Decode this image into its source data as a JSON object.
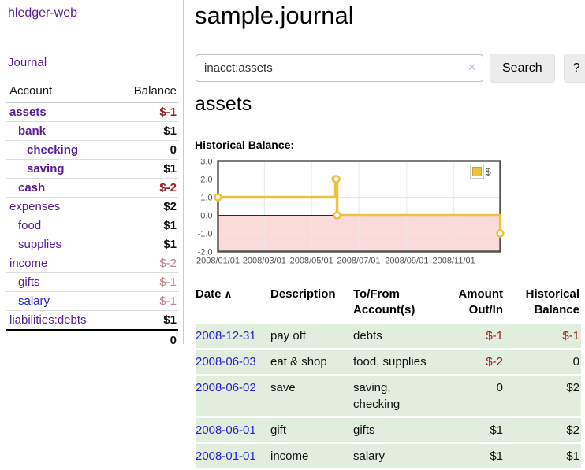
{
  "sidebar": {
    "brand": "hledger-web",
    "journal_link": "Journal",
    "account_table": {
      "headers": {
        "account": "Account",
        "balance": "Balance"
      },
      "rows": [
        {
          "account": "assets",
          "indent": 0,
          "emph": true,
          "blue": false,
          "balance": "$-1",
          "negative": true,
          "muted": false
        },
        {
          "account": "bank",
          "indent": 1,
          "emph": true,
          "blue": false,
          "balance": "$1",
          "negative": false,
          "muted": false
        },
        {
          "account": "checking",
          "indent": 2,
          "emph": true,
          "blue": false,
          "balance": "0",
          "negative": false,
          "muted": false
        },
        {
          "account": "saving",
          "indent": 2,
          "emph": true,
          "blue": false,
          "balance": "$1",
          "negative": false,
          "muted": false
        },
        {
          "account": "cash",
          "indent": 1,
          "emph": true,
          "blue": false,
          "balance": "$-2",
          "negative": true,
          "muted": false
        },
        {
          "account": "expenses",
          "indent": 0,
          "emph": false,
          "blue": false,
          "balance": "$2",
          "negative": false,
          "muted": false
        },
        {
          "account": "food",
          "indent": 1,
          "emph": false,
          "blue": false,
          "balance": "$1",
          "negative": false,
          "muted": false
        },
        {
          "account": "supplies",
          "indent": 1,
          "emph": false,
          "blue": false,
          "balance": "$1",
          "negative": false,
          "muted": false
        },
        {
          "account": "income",
          "indent": 0,
          "emph": false,
          "blue": false,
          "balance": "$-2",
          "negative": true,
          "muted": true
        },
        {
          "account": "gifts",
          "indent": 1,
          "emph": false,
          "blue": false,
          "balance": "$-1",
          "negative": true,
          "muted": true
        },
        {
          "account": "salary",
          "indent": 1,
          "emph": false,
          "blue": true,
          "balance": "$-1",
          "negative": true,
          "muted": true
        },
        {
          "account": "liabilities:debts",
          "indent": 0,
          "emph": false,
          "blue": false,
          "balance": "$1",
          "negative": false,
          "muted": false
        }
      ],
      "total": "0"
    }
  },
  "header": {
    "title": "sample.journal"
  },
  "search": {
    "value": "inacct:assets",
    "clear_icon": "×",
    "search_button": "Search",
    "help_button": "?"
  },
  "account_page": {
    "heading": "assets",
    "chart_title": "Historical Balance:"
  },
  "chart_data": {
    "type": "line",
    "title": "Historical Balance:",
    "series": [
      {
        "name": "$",
        "color": "#edc240",
        "points": [
          [
            "2008-01-01",
            1
          ],
          [
            "2008-06-01",
            2
          ],
          [
            "2008-06-02",
            2
          ],
          [
            "2008-06-03",
            0
          ],
          [
            "2008-12-31",
            -1
          ]
        ]
      }
    ],
    "style": "step",
    "x_range": [
      "2008-01-01",
      "2008-12-31"
    ],
    "ylim": [
      -2,
      3
    ],
    "y_ticks": [
      {
        "v": 3,
        "label": "3.0"
      },
      {
        "v": 2,
        "label": "2.0"
      },
      {
        "v": 1,
        "label": "1.0"
      },
      {
        "v": 0,
        "label": "0.0"
      },
      {
        "v": -1,
        "label": "-1.0"
      },
      {
        "v": -2,
        "label": "-2.0"
      }
    ],
    "x_ticks": [
      "2008/01/01",
      "2008/03/01",
      "2008/05/01",
      "2008/07/01",
      "2008/09/01",
      "2008/11/01"
    ],
    "grid": true,
    "legend_position": "top-right",
    "negative_fill": "#fbdada",
    "zero_line_color": "#8b0000",
    "border_color": "#545454",
    "grid_color": "#e8e8e8"
  },
  "register": {
    "sort_icon": "∧",
    "columns": [
      {
        "l1": "Date",
        "l2": "",
        "num": false,
        "sort": true
      },
      {
        "l1": "Description",
        "l2": "",
        "num": false,
        "sort": false
      },
      {
        "l1": "To/From",
        "l2": "Account(s)",
        "num": false,
        "sort": false
      },
      {
        "l1": "Amount",
        "l2": "Out/In",
        "num": true,
        "sort": false
      },
      {
        "l1": "Historical",
        "l2": "Balance",
        "num": true,
        "sort": false
      }
    ],
    "rows": [
      {
        "date": "2008-12-31",
        "description": "pay off",
        "accounts": "debts",
        "amount": "$-1",
        "amount_negative": true,
        "balance": "$-1",
        "balance_negative": true
      },
      {
        "date": "2008-06-03",
        "description": "eat & shop",
        "accounts": "food, supplies",
        "amount": "$-2",
        "amount_negative": true,
        "balance": "0",
        "balance_negative": false
      },
      {
        "date": "2008-06-02",
        "description": "save",
        "accounts": "saving, checking",
        "amount": "0",
        "amount_negative": false,
        "balance": "$2",
        "balance_negative": false
      },
      {
        "date": "2008-06-01",
        "description": "gift",
        "accounts": "gifts",
        "amount": "$1",
        "amount_negative": false,
        "balance": "$2",
        "balance_negative": false
      },
      {
        "date": "2008-01-01",
        "description": "income",
        "accounts": "salary",
        "amount": "$1",
        "amount_negative": false,
        "balance": "$1",
        "balance_negative": false
      }
    ]
  },
  "colors": {
    "link-purple": "#571c97",
    "link-blue": "#2323d3",
    "neg-strong": "#9d2025",
    "neg-muted": "#c2808a",
    "row-green": "#e2eedd",
    "divider": "#cccccc",
    "button-bg": "#ececec",
    "axis-text": "#545454"
  }
}
